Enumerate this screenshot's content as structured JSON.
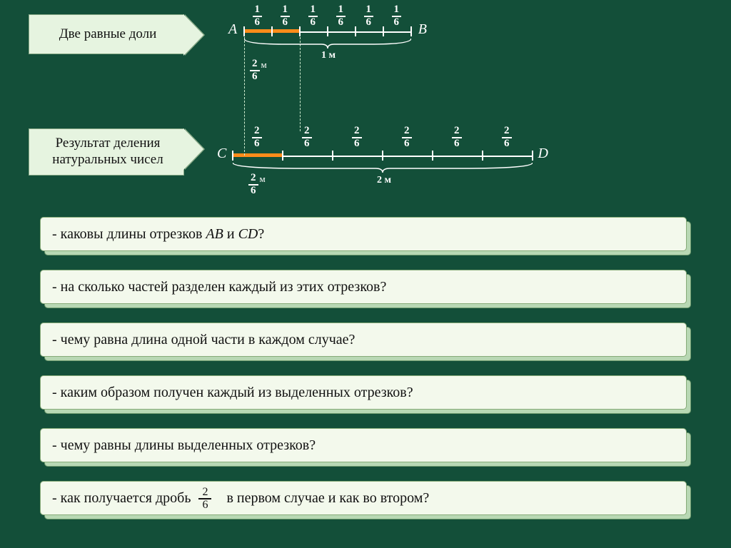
{
  "colors": {
    "background": "#134f39",
    "banner_bg": "#e6f4e0",
    "banner_border": "#86a886",
    "card_bg": "#f3f9ec",
    "card_border": "#87ab79",
    "card_shadow": "#b8d8b4",
    "highlight": "#ff8c1a",
    "line": "#ffffff",
    "text_dark": "#111111",
    "text_light": "#ffffff",
    "dashed": "#cfeccf"
  },
  "banners": {
    "top": "Две равные доли",
    "bottom": "Результат деления натуральных чисел"
  },
  "diagram": {
    "segment1": {
      "left_label": "A",
      "right_label": "B",
      "divisions": 6,
      "fraction_numer": "1",
      "fraction_denom": "6",
      "highlight_parts": 2,
      "total_length_label": "1 м",
      "segment_length_fraction": {
        "numer": "2",
        "denom": "6",
        "unit": "м"
      }
    },
    "segment2": {
      "left_label": "C",
      "right_label": "D",
      "divisions": 6,
      "fraction_numer": "2",
      "fraction_denom": "6",
      "highlight_parts": 1,
      "total_length_label": "2 м",
      "segment_length_fraction": {
        "numer": "2",
        "denom": "6",
        "unit": "м"
      }
    }
  },
  "questions": [
    {
      "pre": "- каковы длины отрезков ",
      "italic": "AB",
      "mid": " и ",
      "italic2": "CD",
      "post": "?"
    },
    {
      "pre": "- на сколько частей разделен каждый из этих отрезков?"
    },
    {
      "pre": "- чему равна длина одной части в каждом случае?"
    },
    {
      "pre": "- каким образом получен каждый из выделенных отрезков?"
    },
    {
      "pre": "- чему равны длины выделенных отрезков?"
    },
    {
      "pre": "- как получается дробь ",
      "fraction": {
        "n": "2",
        "d": "6"
      },
      "post": "   в первом случае и как во втором?"
    }
  ]
}
